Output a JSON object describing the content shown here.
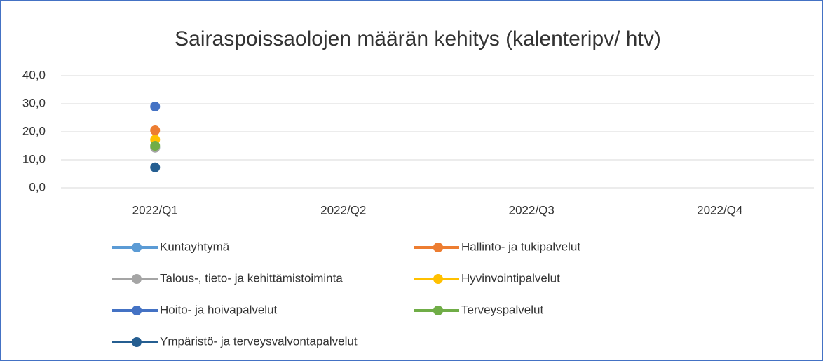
{
  "chart_data": {
    "type": "line",
    "title": "Sairaspoissaolojen määrän kehitys (kalenteripv/ htv)",
    "categories": [
      "2022/Q1",
      "2022/Q2",
      "2022/Q3",
      "2022/Q4"
    ],
    "series": [
      {
        "name": "Kuntayhtymä",
        "color": "#5b9bd5",
        "values": [
          14.5,
          null,
          null,
          null
        ]
      },
      {
        "name": "Hallinto- ja tukipalvelut",
        "color": "#ed7d31",
        "values": [
          20.5,
          null,
          null,
          null
        ]
      },
      {
        "name": "Talous-, tieto- ja kehittämistoiminta",
        "color": "#a5a5a5",
        "values": [
          14.3,
          null,
          null,
          null
        ]
      },
      {
        "name": "Hyvinvointipalvelut",
        "color": "#ffc000",
        "values": [
          17.2,
          null,
          null,
          null
        ]
      },
      {
        "name": "Hoito- ja hoivapalvelut",
        "color": "#4472c4",
        "values": [
          29.0,
          null,
          null,
          null
        ]
      },
      {
        "name": "Terveyspalvelut",
        "color": "#70ad47",
        "values": [
          15.0,
          null,
          null,
          null
        ]
      },
      {
        "name": "Ympäristö- ja terveysvalvontapalvelut",
        "color": "#255e91",
        "values": [
          7.3,
          null,
          null,
          null
        ]
      }
    ],
    "ylim": [
      0,
      40
    ],
    "yticks": [
      {
        "value": 0,
        "label": "0,0"
      },
      {
        "value": 10,
        "label": "10,0"
      },
      {
        "value": 20,
        "label": "20,0"
      },
      {
        "value": 30,
        "label": "30,0"
      },
      {
        "value": 40,
        "label": "40,0"
      }
    ],
    "grid": true,
    "legend": "bottom"
  }
}
